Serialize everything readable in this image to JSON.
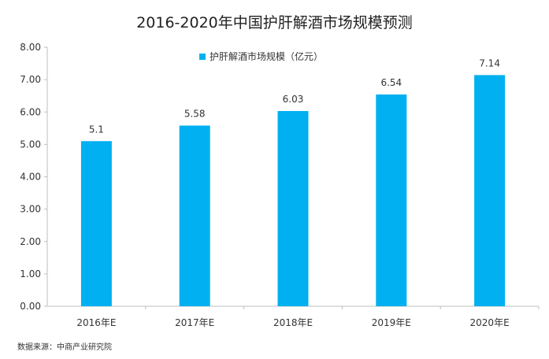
{
  "chart_data": {
    "type": "bar",
    "title": "2016-2020年中国护肝解酒市场规模预测",
    "categories": [
      "2016年E",
      "2017年E",
      "2018年E",
      "2019年E",
      "2020年E"
    ],
    "series": [
      {
        "name": "护肝解酒市场规模（亿元）",
        "values": [
          5.1,
          5.58,
          6.03,
          6.54,
          7.14
        ],
        "value_labels": [
          "5.1",
          "5.58",
          "6.03",
          "6.54",
          "7.14"
        ],
        "color": "#00b0f0"
      }
    ],
    "y_ticks": [
      "0.00",
      "1.00",
      "2.00",
      "3.00",
      "4.00",
      "5.00",
      "6.00",
      "7.00",
      "8.00"
    ],
    "ylim": [
      0,
      8
    ],
    "xlabel": "",
    "ylabel": "",
    "grid": false,
    "legend_position": "top-left"
  },
  "source_note": "数据来源：中商产业研究院",
  "colors": {
    "bar": "#00b0f0",
    "axis": "#bfbfbf",
    "text": "#333333"
  }
}
